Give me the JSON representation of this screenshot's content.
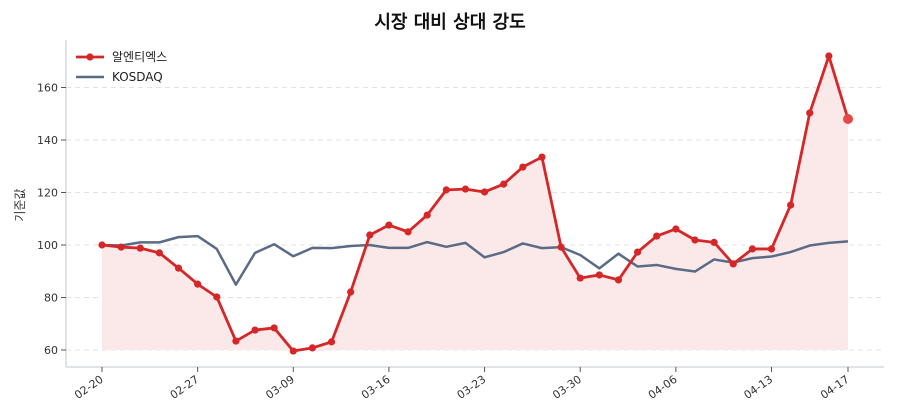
{
  "title": "시장 대비 상대 강도",
  "chart_data": {
    "type": "line",
    "title": "시장 대비 상대 강도",
    "xlabel": "",
    "ylabel": "기준값",
    "ylim": [
      54,
      178
    ],
    "yticks": [
      60,
      80,
      100,
      120,
      140,
      160
    ],
    "xtick_labels": [
      "02-20",
      "02-27",
      "03-09",
      "03-16",
      "03-23",
      "03-30",
      "04-06",
      "04-13",
      "04-17"
    ],
    "xtick_index": [
      0,
      5,
      10,
      15,
      20,
      25,
      30,
      35,
      39
    ],
    "grid": true,
    "legend_position": "upper left",
    "series": [
      {
        "name": "알엔티엑스",
        "color": "#d62728",
        "markers": true,
        "fill": true,
        "values": [
          100,
          99.2,
          98.8,
          97,
          91.2,
          85.1,
          80.2,
          63.4,
          67.6,
          68.4,
          59.6,
          60.8,
          63.1,
          82.1,
          103.8,
          107.6,
          105,
          111.4,
          121,
          121.3,
          120.2,
          123.2,
          129.7,
          133.5,
          99.2,
          87.4,
          88.6,
          86.7,
          97.3,
          103.4,
          106.1,
          101.9,
          101,
          92.8,
          98.5,
          98.5,
          115.2,
          150.3,
          172,
          148
        ]
      },
      {
        "name": "KOSDAQ",
        "color": "#5a6b85",
        "markers": false,
        "fill": false,
        "values": [
          100,
          99.8,
          101,
          101,
          103,
          103.4,
          98.5,
          84.9,
          97,
          100.3,
          95.7,
          98.9,
          98.8,
          99.6,
          100,
          98.9,
          98.9,
          101.1,
          99.3,
          100.8,
          95.3,
          97.3,
          100.6,
          98.8,
          99.2,
          96.2,
          91.1,
          96.7,
          91.8,
          92.4,
          90.9,
          89.9,
          94.5,
          93.3,
          95,
          95.6,
          97.3,
          99.8,
          100.8,
          101.4
        ]
      }
    ]
  }
}
